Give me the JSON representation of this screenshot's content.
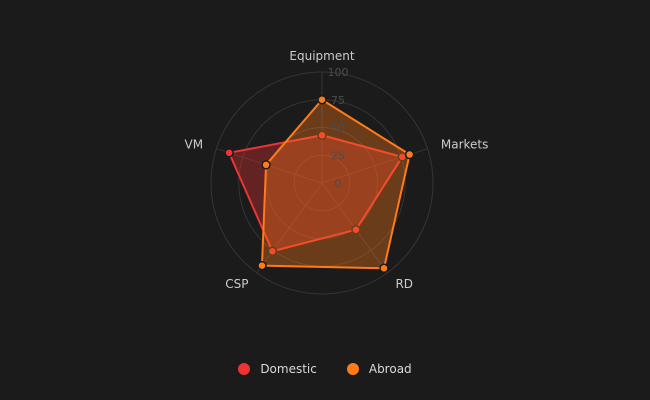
{
  "chart_data": {
    "type": "radar",
    "indicators": [
      "Equipment",
      "Markets",
      "RD",
      "CSP",
      "VM"
    ],
    "max": 100,
    "rings": [
      0,
      25,
      50,
      75,
      100
    ],
    "series": [
      {
        "name": "Domestic",
        "values": [
          43,
          76,
          52,
          76,
          88
        ],
        "color": "#ee3333"
      },
      {
        "name": "Abroad",
        "values": [
          75,
          83,
          95,
          92,
          53
        ],
        "color": "#ff7b1a"
      }
    ],
    "legend_position": "bottom-center"
  },
  "legend": {
    "items": [
      {
        "label": "Domestic",
        "color": "#ee3333"
      },
      {
        "label": "Abroad",
        "color": "#ff7b1a"
      }
    ]
  }
}
